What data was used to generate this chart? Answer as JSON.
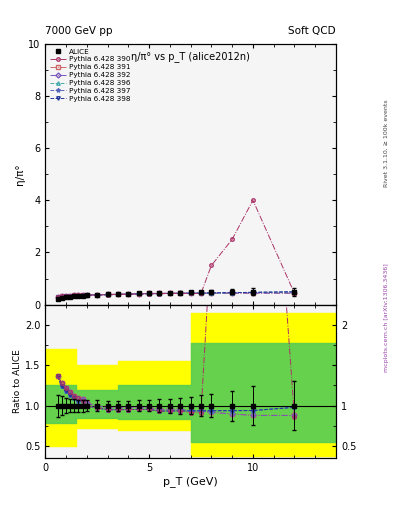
{
  "title_main": "η/π° vs p_T (alice2012n)",
  "header_left": "7000 GeV pp",
  "header_right": "Soft QCD",
  "right_label": "Rivet 3.1.10, ≥ 100k events",
  "url_label": "mcplots.cern.ch [arXiv:1306.3436]",
  "ylabel_main": "η/π°",
  "ylabel_ratio": "Ratio to ALICE",
  "xlabel": "p_T (GeV)",
  "xlim": [
    0,
    14
  ],
  "ylim_main": [
    0,
    10
  ],
  "ylim_ratio": [
    0.35,
    2.25
  ],
  "alice_pt": [
    0.6,
    0.8,
    1.0,
    1.2,
    1.4,
    1.6,
    1.8,
    2.0,
    2.5,
    3.0,
    3.5,
    4.0,
    4.5,
    5.0,
    5.5,
    6.0,
    6.5,
    7.0,
    7.5,
    8.0,
    9.0,
    10.0,
    12.0
  ],
  "alice_val": [
    0.22,
    0.25,
    0.28,
    0.3,
    0.32,
    0.33,
    0.34,
    0.36,
    0.38,
    0.4,
    0.41,
    0.42,
    0.43,
    0.44,
    0.45,
    0.46,
    0.46,
    0.47,
    0.47,
    0.48,
    0.49,
    0.5,
    0.5
  ],
  "alice_err": [
    0.03,
    0.03,
    0.025,
    0.025,
    0.025,
    0.025,
    0.025,
    0.025,
    0.025,
    0.025,
    0.025,
    0.025,
    0.03,
    0.03,
    0.035,
    0.04,
    0.045,
    0.05,
    0.06,
    0.07,
    0.09,
    0.12,
    0.15
  ],
  "pythia_390_pt": [
    0.6,
    0.8,
    1.0,
    1.2,
    1.4,
    1.6,
    1.8,
    2.0,
    2.5,
    3.0,
    3.5,
    4.0,
    4.5,
    5.0,
    5.5,
    6.0,
    6.5,
    7.0,
    7.5,
    8.0,
    9.0,
    10.0,
    12.0
  ],
  "pythia_390_val": [
    0.3,
    0.32,
    0.34,
    0.35,
    0.36,
    0.36,
    0.36,
    0.36,
    0.37,
    0.38,
    0.39,
    0.4,
    0.41,
    0.42,
    0.42,
    0.43,
    0.43,
    0.43,
    0.43,
    1.5,
    2.5,
    4.0,
    0.43
  ],
  "pythia_391_pt": [
    0.6,
    0.8,
    1.0,
    1.2,
    1.4,
    1.6,
    1.8,
    2.0,
    2.5,
    3.0,
    3.5,
    4.0,
    4.5,
    5.0,
    5.5,
    6.0,
    6.5,
    7.0,
    7.5,
    8.0,
    9.0,
    10.0,
    12.0
  ],
  "pythia_391_val": [
    0.3,
    0.32,
    0.34,
    0.35,
    0.36,
    0.36,
    0.37,
    0.37,
    0.38,
    0.39,
    0.4,
    0.41,
    0.42,
    0.43,
    0.43,
    0.44,
    0.44,
    0.44,
    0.44,
    0.44,
    0.44,
    0.44,
    0.44
  ],
  "pythia_392_pt": [
    0.6,
    0.8,
    1.0,
    1.2,
    1.4,
    1.6,
    1.8,
    2.0,
    2.5,
    3.0,
    3.5,
    4.0,
    4.5,
    5.0,
    5.5,
    6.0,
    6.5,
    7.0,
    7.5,
    8.0,
    9.0,
    10.0,
    12.0
  ],
  "pythia_392_val": [
    0.3,
    0.32,
    0.34,
    0.35,
    0.36,
    0.36,
    0.37,
    0.37,
    0.38,
    0.39,
    0.4,
    0.41,
    0.42,
    0.43,
    0.43,
    0.44,
    0.44,
    0.44,
    0.44,
    0.44,
    0.44,
    0.44,
    0.44
  ],
  "pythia_396_pt": [
    0.6,
    0.8,
    1.0,
    1.2,
    1.4,
    1.6,
    1.8,
    2.0,
    2.5,
    3.0,
    3.5,
    4.0,
    4.5,
    5.0,
    5.5,
    6.0,
    6.5,
    7.0,
    7.5,
    8.0,
    9.0,
    10.0,
    12.0
  ],
  "pythia_396_val": [
    0.3,
    0.31,
    0.33,
    0.34,
    0.35,
    0.35,
    0.36,
    0.36,
    0.37,
    0.38,
    0.39,
    0.4,
    0.41,
    0.42,
    0.42,
    0.43,
    0.43,
    0.44,
    0.44,
    0.45,
    0.46,
    0.47,
    0.49
  ],
  "pythia_397_pt": [
    0.6,
    0.8,
    1.0,
    1.2,
    1.4,
    1.6,
    1.8,
    2.0,
    2.5,
    3.0,
    3.5,
    4.0,
    4.5,
    5.0,
    5.5,
    6.0,
    6.5,
    7.0,
    7.5,
    8.0,
    9.0,
    10.0,
    12.0
  ],
  "pythia_397_val": [
    0.3,
    0.31,
    0.33,
    0.34,
    0.35,
    0.35,
    0.36,
    0.36,
    0.37,
    0.38,
    0.39,
    0.4,
    0.41,
    0.42,
    0.42,
    0.43,
    0.43,
    0.44,
    0.44,
    0.45,
    0.46,
    0.47,
    0.49
  ],
  "pythia_398_pt": [
    0.6,
    0.8,
    1.0,
    1.2,
    1.4,
    1.6,
    1.8,
    2.0,
    2.5,
    3.0,
    3.5,
    4.0,
    4.5,
    5.0,
    5.5,
    6.0,
    6.5,
    7.0,
    7.5,
    8.0,
    9.0,
    10.0,
    12.0
  ],
  "pythia_398_val": [
    0.3,
    0.31,
    0.33,
    0.34,
    0.35,
    0.35,
    0.36,
    0.36,
    0.37,
    0.38,
    0.39,
    0.4,
    0.41,
    0.42,
    0.42,
    0.43,
    0.43,
    0.44,
    0.44,
    0.45,
    0.46,
    0.47,
    0.49
  ],
  "color_390": "#aa3366",
  "color_391": "#cc6666",
  "color_392": "#7755bb",
  "color_396": "#44aaaa",
  "color_397": "#5566bb",
  "color_398": "#223399",
  "bg_color": "#f5f5f5"
}
